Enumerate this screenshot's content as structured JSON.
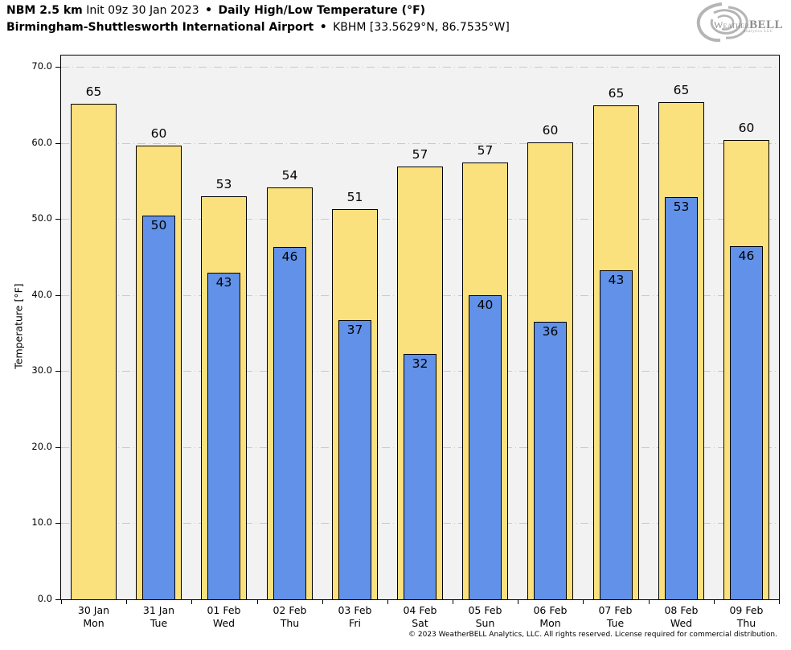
{
  "header": {
    "model": "NBM 2.5 km",
    "init": "Init 09z 30 Jan 2023",
    "bullet": "•",
    "product": "Daily High/Low Temperature (°F)",
    "station_name": "Birmingham-Shuttlesworth International Airport",
    "station_id": "KBHM [33.5629°N, 86.7535°W]"
  },
  "logo": {
    "part_weather": "Weather",
    "part_bell": "BELL",
    "sub": "Analytics LLC"
  },
  "chart_data": {
    "type": "bar",
    "title": "Daily High/Low Temperature (°F)",
    "ylabel": "Temperature [°F]",
    "ylim": [
      0,
      71.5
    ],
    "yticks": [
      0,
      10,
      20,
      30,
      40,
      50,
      60,
      70
    ],
    "ytick_labels": [
      "0.0",
      "10.0",
      "20.0",
      "30.0",
      "40.0",
      "50.0",
      "60.0",
      "70.0"
    ],
    "grid": "horizontal dash-dot lines every 10 degrees",
    "legend": "none",
    "categories": [
      {
        "date": "30 Jan",
        "day": "Mon"
      },
      {
        "date": "31 Jan",
        "day": "Tue"
      },
      {
        "date": "01 Feb",
        "day": "Wed"
      },
      {
        "date": "02 Feb",
        "day": "Thu"
      },
      {
        "date": "03 Feb",
        "day": "Fri"
      },
      {
        "date": "04 Feb",
        "day": "Sat"
      },
      {
        "date": "05 Feb",
        "day": "Sun"
      },
      {
        "date": "06 Feb",
        "day": "Mon"
      },
      {
        "date": "07 Feb",
        "day": "Tue"
      },
      {
        "date": "08 Feb",
        "day": "Wed"
      },
      {
        "date": "09 Feb",
        "day": "Thu"
      }
    ],
    "series": [
      {
        "name": "High",
        "color": "#FBE17D",
        "values": [
          65,
          60,
          53,
          54,
          51,
          57,
          57,
          60,
          65,
          65,
          60
        ],
        "bar_heights_f": [
          65.2,
          59.7,
          53.0,
          54.2,
          51.3,
          56.9,
          57.4,
          60.1,
          64.9,
          65.4,
          60.4
        ]
      },
      {
        "name": "Low",
        "color": "#6191E8",
        "values": [
          null,
          50,
          43,
          46,
          37,
          32,
          40,
          36,
          43,
          53,
          46
        ],
        "bar_heights_f": [
          null,
          50.4,
          42.9,
          46.3,
          36.7,
          32.3,
          40.0,
          36.5,
          43.3,
          52.9,
          46.4
        ]
      }
    ],
    "colors": {
      "plot_background": "#F2F2F2",
      "figure_background": "#FFFFFF",
      "gridline": "#C9C9C9",
      "bar_edge": "#000000",
      "logo_gray": "#8D8D8D"
    }
  },
  "footer": {
    "copyright": "© 2023 WeatherBELL Analytics, LLC. All rights reserved. License required for commercial distribution."
  }
}
